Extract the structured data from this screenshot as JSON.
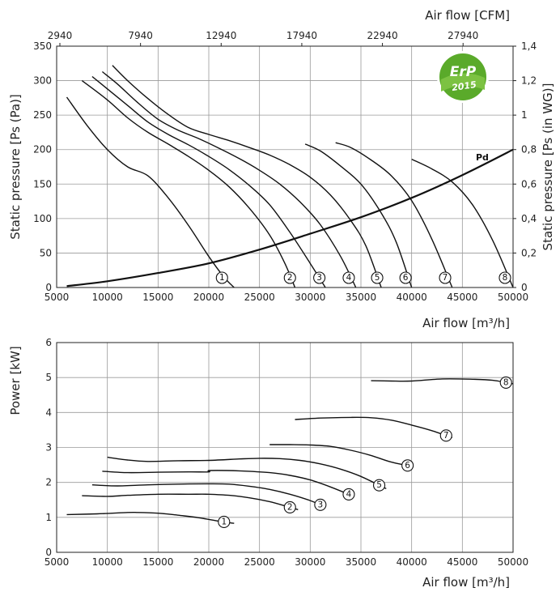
{
  "badge": {
    "main": "ErP",
    "year": "2015"
  },
  "chart_data": [
    {
      "type": "line",
      "title": "",
      "xlabel": "Air flow [m³/h]",
      "ylabel": "Static pressure [Ps (Pa)]",
      "xlim": [
        5000,
        50000
      ],
      "ylim": [
        0,
        350
      ],
      "x_ticks": [
        "5000",
        "10000",
        "15000",
        "20000",
        "25000",
        "30000",
        "35000",
        "40000",
        "45000",
        "50000"
      ],
      "y_ticks": [
        "0",
        "50",
        "100",
        "150",
        "200",
        "250",
        "300",
        "350"
      ],
      "top_axis": {
        "label": "Air flow [CFM]",
        "ticks": [
          "2940",
          "7940",
          "12940",
          "17940",
          "22940",
          "27940"
        ]
      },
      "right_axis": {
        "label": "Static pressure [Ps (in WG)]",
        "ticks": [
          "0",
          "0,2",
          "0,4",
          "0,6",
          "0,8",
          "1",
          "1,2",
          "1,4"
        ]
      },
      "grid": true,
      "series": [
        {
          "name": "1",
          "x": [
            6000,
            8000,
            10000,
            12000,
            14000,
            16000,
            18000,
            20000,
            21500,
            22500
          ],
          "y": [
            276,
            235,
            200,
            175,
            162,
            130,
            90,
            45,
            15,
            0
          ],
          "marker_x": 21300
        },
        {
          "name": "2",
          "x": [
            7500,
            10000,
            12000,
            14000,
            16000,
            18000,
            20000,
            22000,
            24000,
            26000,
            27500,
            28500
          ],
          "y": [
            300,
            272,
            246,
            225,
            208,
            190,
            170,
            146,
            115,
            76,
            35,
            0
          ],
          "marker_x": 28000
        },
        {
          "name": "3",
          "x": [
            8500,
            10000,
            12000,
            14000,
            16000,
            18000,
            20000,
            22000,
            24000,
            26000,
            28000,
            30000,
            31500
          ],
          "y": [
            306,
            288,
            264,
            240,
            222,
            207,
            190,
            171,
            148,
            120,
            80,
            35,
            0
          ],
          "marker_x": 30900
        },
        {
          "name": "4",
          "x": [
            9500,
            11000,
            13000,
            15000,
            17000,
            19000,
            21000,
            23000,
            25000,
            27000,
            29000,
            31000,
            33000,
            34500
          ],
          "y": [
            313,
            295,
            268,
            244,
            228,
            216,
            202,
            187,
            170,
            150,
            124,
            91,
            45,
            0
          ],
          "marker_x": 33800
        },
        {
          "name": "5",
          "x": [
            10500,
            12000,
            14000,
            16000,
            18000,
            20000,
            22000,
            24000,
            26000,
            28000,
            30000,
            32000,
            34000,
            35500,
            37000
          ],
          "y": [
            322,
            300,
            274,
            251,
            232,
            222,
            213,
            203,
            192,
            178,
            160,
            134,
            97,
            60,
            0
          ],
          "marker_x": 36600
        },
        {
          "name": "6",
          "x": [
            29500,
            31000,
            33000,
            35000,
            37000,
            38500,
            40000
          ],
          "y": [
            208,
            198,
            176,
            150,
            108,
            65,
            0
          ],
          "marker_x": 39400
        },
        {
          "name": "7",
          "x": [
            32500,
            34000,
            36000,
            38000,
            40000,
            42000,
            44000
          ],
          "y": [
            210,
            203,
            185,
            162,
            126,
            70,
            0
          ],
          "marker_x": 43300
        },
        {
          "name": "8",
          "x": [
            40000,
            42000,
            44000,
            46000,
            48000,
            50000
          ],
          "y": [
            186,
            172,
            153,
            120,
            68,
            0
          ],
          "marker_x": 49200
        },
        {
          "name": "Pd",
          "x": [
            6000,
            10000,
            15000,
            20000,
            25000,
            30000,
            35000,
            40000,
            45000,
            50000
          ],
          "y": [
            2,
            9,
            21,
            35,
            55,
            78,
            102,
            130,
            163,
            200
          ]
        }
      ]
    },
    {
      "type": "line",
      "title": "",
      "xlabel": "Air flow [m³/h]",
      "ylabel": "Power [kW]",
      "xlim": [
        5000,
        50000
      ],
      "ylim": [
        0,
        6
      ],
      "x_ticks": [
        "5000",
        "10000",
        "15000",
        "20000",
        "25000",
        "30000",
        "35000",
        "40000",
        "45000",
        "50000"
      ],
      "y_ticks": [
        "0",
        "1",
        "2",
        "3",
        "4",
        "5",
        "6"
      ],
      "grid": true,
      "series": [
        {
          "name": "1",
          "x": [
            6000,
            9000,
            12000,
            13000,
            15000,
            17000,
            19000,
            21000,
            22500
          ],
          "y": [
            1.08,
            1.1,
            1.14,
            1.14,
            1.12,
            1.06,
            0.99,
            0.89,
            0.83
          ],
          "marker_x": 21500
        },
        {
          "name": "2",
          "x": [
            7500,
            10000,
            12000,
            15000,
            18000,
            20000,
            22000,
            24000,
            26000,
            27500,
            28800
          ],
          "y": [
            1.62,
            1.6,
            1.63,
            1.66,
            1.66,
            1.66,
            1.63,
            1.56,
            1.45,
            1.33,
            1.22
          ],
          "marker_x": 28000
        },
        {
          "name": "3",
          "x": [
            8500,
            11000,
            14000,
            17000,
            20000,
            22000,
            24000,
            26000,
            28000,
            30000,
            31500
          ],
          "y": [
            1.93,
            1.9,
            1.93,
            1.95,
            1.96,
            1.95,
            1.89,
            1.8,
            1.66,
            1.48,
            1.3
          ],
          "marker_x": 31000
        },
        {
          "name": "4",
          "x": [
            9500,
            12000,
            15000,
            18000,
            20000,
            20100,
            23000,
            26000,
            28000,
            30000,
            32000,
            34300
          ],
          "y": [
            2.32,
            2.28,
            2.29,
            2.3,
            2.3,
            2.34,
            2.33,
            2.28,
            2.2,
            2.07,
            1.87,
            1.6
          ],
          "marker_x": 33800
        },
        {
          "name": "5",
          "x": [
            10000,
            12000,
            14000,
            17000,
            20000,
            23000,
            25000,
            27000,
            29000,
            31000,
            33000,
            35000,
            37500
          ],
          "y": [
            2.72,
            2.64,
            2.6,
            2.62,
            2.63,
            2.67,
            2.69,
            2.68,
            2.63,
            2.53,
            2.38,
            2.17,
            1.82
          ],
          "marker_x": 36800
        },
        {
          "name": "6",
          "x": [
            26000,
            28000,
            30000,
            32000,
            34000,
            36000,
            38000,
            40000
          ],
          "y": [
            3.08,
            3.08,
            3.07,
            3.03,
            2.92,
            2.77,
            2.58,
            2.46
          ],
          "marker_x": 39600
        },
        {
          "name": "7",
          "x": [
            28500,
            31000,
            34000,
            36000,
            38000,
            40000,
            42000,
            44000
          ],
          "y": [
            3.8,
            3.84,
            3.86,
            3.85,
            3.78,
            3.64,
            3.48,
            3.28
          ],
          "marker_x": 43400
        },
        {
          "name": "8",
          "x": [
            36000,
            38000,
            40000,
            43000,
            46000,
            48000,
            50000
          ],
          "y": [
            4.91,
            4.9,
            4.9,
            4.96,
            4.95,
            4.92,
            4.82
          ],
          "marker_x": 49300
        }
      ]
    }
  ]
}
